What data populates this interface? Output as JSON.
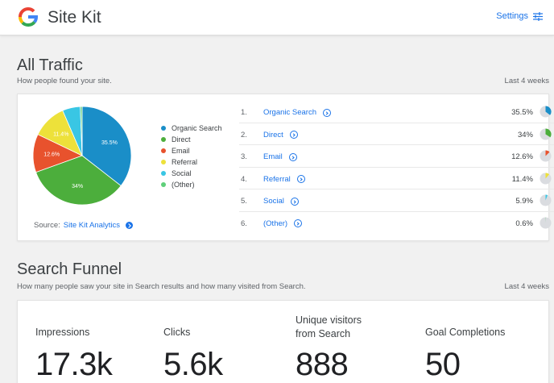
{
  "header": {
    "brand": "Site Kit",
    "settings_label": "Settings"
  },
  "icons": {
    "logo": "google-g-icon",
    "settings": "sliders-icon",
    "info": "arrow-circle-icon"
  },
  "colors": {
    "organic_search": "#1a8ec8",
    "direct": "#4cae3c",
    "email": "#e8522d",
    "referral": "#ede13a",
    "social": "#39c6e4",
    "other": "#5fcf7a",
    "link": "#1a73e8"
  },
  "all_traffic": {
    "title": "All Traffic",
    "subtitle": "How people found your site.",
    "range": "Last 4 weeks",
    "source_prefix": "Source:",
    "source_link": "Site Kit Analytics",
    "legend": [
      "Organic Search",
      "Direct",
      "Email",
      "Referral",
      "Social",
      "(Other)"
    ],
    "rows": [
      {
        "rank": "1.",
        "label": "Organic Search",
        "percent": "35.5%"
      },
      {
        "rank": "2.",
        "label": "Direct",
        "percent": "34%"
      },
      {
        "rank": "3.",
        "label": "Email",
        "percent": "12.6%"
      },
      {
        "rank": "4.",
        "label": "Referral",
        "percent": "11.4%"
      },
      {
        "rank": "5.",
        "label": "Social",
        "percent": "5.9%"
      },
      {
        "rank": "6.",
        "label": "(Other)",
        "percent": "0.6%"
      }
    ]
  },
  "chart_data": {
    "type": "pie",
    "categories": [
      "Organic Search",
      "Direct",
      "Email",
      "Referral",
      "Social",
      "(Other)"
    ],
    "values": [
      35.5,
      34,
      12.6,
      11.4,
      5.9,
      0.6
    ],
    "slice_labels": [
      "35.5%",
      "34%",
      "12.6%",
      "11.4%",
      "",
      ""
    ],
    "colors": [
      "#1a8ec8",
      "#4cae3c",
      "#e8522d",
      "#ede13a",
      "#39c6e4",
      "#5fcf7a"
    ],
    "legend_position": "right"
  },
  "search_funnel": {
    "title": "Search Funnel",
    "subtitle": "How many people saw your site in Search results and how many visited from Search.",
    "range": "Last 4 weeks",
    "metrics": [
      {
        "label": "Impressions",
        "value": "17.3k"
      },
      {
        "label": "Clicks",
        "value": "5.6k"
      },
      {
        "label": "Unique visitors from Search",
        "value": "888"
      },
      {
        "label": "Goal Completions",
        "value": "50"
      }
    ]
  }
}
